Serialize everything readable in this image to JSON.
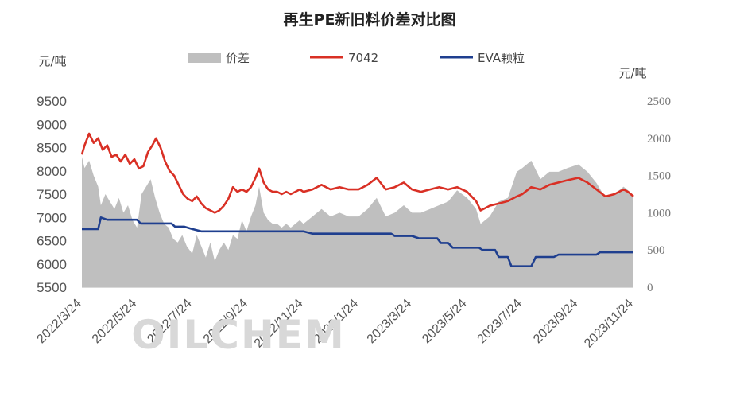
{
  "chart_data": {
    "type": "line",
    "title": "再生PE新旧料价差对比图",
    "left_unit": "元/吨",
    "right_unit": "元/吨",
    "watermark": "OILCHEM",
    "y_left": {
      "min": 5500,
      "max": 9500,
      "ticks": [
        "9500",
        "9000",
        "8500",
        "8000",
        "7500",
        "7000",
        "6500",
        "6000",
        "5500"
      ]
    },
    "y_right": {
      "min": 0,
      "max": 2500,
      "ticks": [
        "2500",
        "2000",
        "1500",
        "1000",
        "500",
        "0"
      ]
    },
    "x_ticks": [
      "2022/3/24",
      "2022/5/24",
      "2022/7/24",
      "2022/9/24",
      "2022/11/24",
      "2023/1/24",
      "2023/3/24",
      "2023/5/24",
      "2023/7/24",
      "2023/9/24",
      "2023/11/24"
    ],
    "x_range": [
      "2022/3/24",
      "2023/11/24"
    ],
    "legend": [
      {
        "name": "价差",
        "type": "area",
        "color": "#bfbfbf"
      },
      {
        "name": "7042",
        "type": "line",
        "color": "#d93025"
      },
      {
        "name": "EVA颗粒",
        "type": "line",
        "color": "#1f3f8f"
      }
    ],
    "series": [
      {
        "name": "7042",
        "axis": "left",
        "color": "#d93025",
        "points": [
          [
            "2022/3/24",
            8350
          ],
          [
            "2022/3/27",
            8550
          ],
          [
            "2022/4/1",
            8800
          ],
          [
            "2022/4/6",
            8600
          ],
          [
            "2022/4/11",
            8700
          ],
          [
            "2022/4/16",
            8450
          ],
          [
            "2022/4/21",
            8550
          ],
          [
            "2022/4/26",
            8300
          ],
          [
            "2022/5/1",
            8350
          ],
          [
            "2022/5/6",
            8200
          ],
          [
            "2022/5/11",
            8350
          ],
          [
            "2022/5/16",
            8150
          ],
          [
            "2022/5/21",
            8250
          ],
          [
            "2022/5/26",
            8050
          ],
          [
            "2022/5/31",
            8100
          ],
          [
            "2022/6/5",
            8400
          ],
          [
            "2022/6/10",
            8550
          ],
          [
            "2022/6/14",
            8700
          ],
          [
            "2022/6/19",
            8500
          ],
          [
            "2022/6/24",
            8200
          ],
          [
            "2022/6/29",
            8000
          ],
          [
            "2022/7/4",
            7900
          ],
          [
            "2022/7/9",
            7700
          ],
          [
            "2022/7/14",
            7500
          ],
          [
            "2022/7/19",
            7400
          ],
          [
            "2022/7/24",
            7350
          ],
          [
            "2022/7/29",
            7450
          ],
          [
            "2022/8/3",
            7300
          ],
          [
            "2022/8/8",
            7200
          ],
          [
            "2022/8/13",
            7150
          ],
          [
            "2022/8/18",
            7100
          ],
          [
            "2022/8/23",
            7150
          ],
          [
            "2022/8/28",
            7250
          ],
          [
            "2022/9/2",
            7400
          ],
          [
            "2022/9/7",
            7650
          ],
          [
            "2022/9/12",
            7550
          ],
          [
            "2022/9/17",
            7600
          ],
          [
            "2022/9/22",
            7550
          ],
          [
            "2022/9/27",
            7650
          ],
          [
            "2022/10/2",
            7850
          ],
          [
            "2022/10/6",
            8050
          ],
          [
            "2022/10/11",
            7750
          ],
          [
            "2022/10/16",
            7600
          ],
          [
            "2022/10/21",
            7550
          ],
          [
            "2022/10/26",
            7550
          ],
          [
            "2022/10/31",
            7500
          ],
          [
            "2022/11/5",
            7550
          ],
          [
            "2022/11/10",
            7500
          ],
          [
            "2022/11/15",
            7550
          ],
          [
            "2022/11/20",
            7600
          ],
          [
            "2022/11/24",
            7550
          ],
          [
            "2022/12/4",
            7600
          ],
          [
            "2022/12/14",
            7700
          ],
          [
            "2022/12/24",
            7600
          ],
          [
            "2023/1/3",
            7650
          ],
          [
            "2023/1/13",
            7600
          ],
          [
            "2023/1/24",
            7600
          ],
          [
            "2023/2/3",
            7700
          ],
          [
            "2023/2/13",
            7850
          ],
          [
            "2023/2/23",
            7600
          ],
          [
            "2023/3/5",
            7650
          ],
          [
            "2023/3/15",
            7750
          ],
          [
            "2023/3/24",
            7600
          ],
          [
            "2023/4/3",
            7550
          ],
          [
            "2023/4/13",
            7600
          ],
          [
            "2023/4/23",
            7650
          ],
          [
            "2023/5/3",
            7600
          ],
          [
            "2023/5/13",
            7650
          ],
          [
            "2023/5/24",
            7550
          ],
          [
            "2023/6/3",
            7350
          ],
          [
            "2023/6/8",
            7150
          ],
          [
            "2023/6/13",
            7200
          ],
          [
            "2023/6/18",
            7250
          ],
          [
            "2023/6/28",
            7300
          ],
          [
            "2023/7/8",
            7350
          ],
          [
            "2023/7/18",
            7450
          ],
          [
            "2023/7/24",
            7500
          ],
          [
            "2023/8/3",
            7650
          ],
          [
            "2023/8/13",
            7600
          ],
          [
            "2023/8/23",
            7700
          ],
          [
            "2023/9/2",
            7750
          ],
          [
            "2023/9/12",
            7800
          ],
          [
            "2023/9/24",
            7850
          ],
          [
            "2023/10/4",
            7750
          ],
          [
            "2023/10/14",
            7600
          ],
          [
            "2023/10/24",
            7450
          ],
          [
            "2023/11/3",
            7500
          ],
          [
            "2023/11/13",
            7600
          ],
          [
            "2023/11/18",
            7550
          ],
          [
            "2023/11/24",
            7450
          ]
        ]
      },
      {
        "name": "EVA颗粒",
        "axis": "left",
        "color": "#1f3f8f",
        "points": [
          [
            "2022/3/24",
            6750
          ],
          [
            "2022/4/11",
            6750
          ],
          [
            "2022/4/14",
            7000
          ],
          [
            "2022/4/21",
            6950
          ],
          [
            "2022/5/24",
            6950
          ],
          [
            "2022/5/28",
            6870
          ],
          [
            "2022/7/1",
            6870
          ],
          [
            "2022/7/5",
            6800
          ],
          [
            "2022/7/15",
            6800
          ],
          [
            "2022/7/24",
            6750
          ],
          [
            "2022/8/3",
            6700
          ],
          [
            "2022/9/24",
            6700
          ],
          [
            "2022/11/24",
            6700
          ],
          [
            "2022/12/4",
            6650
          ],
          [
            "2023/1/24",
            6650
          ],
          [
            "2023/3/1",
            6650
          ],
          [
            "2023/3/5",
            6600
          ],
          [
            "2023/3/24",
            6600
          ],
          [
            "2023/4/1",
            6550
          ],
          [
            "2023/4/21",
            6550
          ],
          [
            "2023/4/25",
            6450
          ],
          [
            "2023/5/3",
            6450
          ],
          [
            "2023/5/8",
            6350
          ],
          [
            "2023/6/6",
            6350
          ],
          [
            "2023/6/10",
            6300
          ],
          [
            "2023/6/24",
            6300
          ],
          [
            "2023/6/28",
            6150
          ],
          [
            "2023/7/8",
            6150
          ],
          [
            "2023/7/12",
            5950
          ],
          [
            "2023/8/3",
            5950
          ],
          [
            "2023/8/8",
            6150
          ],
          [
            "2023/8/28",
            6150
          ],
          [
            "2023/9/2",
            6200
          ],
          [
            "2023/10/14",
            6200
          ],
          [
            "2023/10/18",
            6250
          ],
          [
            "2023/11/24",
            6250
          ]
        ]
      },
      {
        "name": "价差",
        "axis": "right",
        "color": "#bfbfbf",
        "points": [
          [
            "2022/3/24",
            1750
          ],
          [
            "2022/3/27",
            1600
          ],
          [
            "2022/4/1",
            1700
          ],
          [
            "2022/4/6",
            1500
          ],
          [
            "2022/4/11",
            1350
          ],
          [
            "2022/4/14",
            1100
          ],
          [
            "2022/4/19",
            1250
          ],
          [
            "2022/4/24",
            1150
          ],
          [
            "2022/4/29",
            1050
          ],
          [
            "2022/5/4",
            1200
          ],
          [
            "2022/5/9",
            1000
          ],
          [
            "2022/5/14",
            1100
          ],
          [
            "2022/5/19",
            900
          ],
          [
            "2022/5/24",
            800
          ],
          [
            "2022/5/29",
            1250
          ],
          [
            "2022/6/3",
            1350
          ],
          [
            "2022/6/8",
            1450
          ],
          [
            "2022/6/13",
            1200
          ],
          [
            "2022/6/18",
            1000
          ],
          [
            "2022/6/23",
            850
          ],
          [
            "2022/6/28",
            800
          ],
          [
            "2022/7/3",
            650
          ],
          [
            "2022/7/8",
            600
          ],
          [
            "2022/7/13",
            700
          ],
          [
            "2022/7/18",
            550
          ],
          [
            "2022/7/24",
            450
          ],
          [
            "2022/7/29",
            700
          ],
          [
            "2022/8/3",
            550
          ],
          [
            "2022/8/8",
            400
          ],
          [
            "2022/8/13",
            600
          ],
          [
            "2022/8/18",
            350
          ],
          [
            "2022/8/23",
            500
          ],
          [
            "2022/8/28",
            600
          ],
          [
            "2022/9/2",
            500
          ],
          [
            "2022/9/7",
            700
          ],
          [
            "2022/9/12",
            650
          ],
          [
            "2022/9/17",
            900
          ],
          [
            "2022/9/22",
            750
          ],
          [
            "2022/9/27",
            950
          ],
          [
            "2022/10/2",
            1100
          ],
          [
            "2022/10/6",
            1350
          ],
          [
            "2022/10/11",
            1000
          ],
          [
            "2022/10/16",
            900
          ],
          [
            "2022/10/21",
            850
          ],
          [
            "2022/10/26",
            850
          ],
          [
            "2022/10/31",
            800
          ],
          [
            "2022/11/5",
            850
          ],
          [
            "2022/11/10",
            800
          ],
          [
            "2022/11/15",
            850
          ],
          [
            "2022/11/20",
            900
          ],
          [
            "2022/11/24",
            850
          ],
          [
            "2022/12/4",
            950
          ],
          [
            "2022/12/14",
            1050
          ],
          [
            "2022/12/24",
            950
          ],
          [
            "2023/1/3",
            1000
          ],
          [
            "2023/1/13",
            950
          ],
          [
            "2023/1/24",
            950
          ],
          [
            "2023/2/3",
            1050
          ],
          [
            "2023/2/13",
            1200
          ],
          [
            "2023/2/23",
            950
          ],
          [
            "2023/3/5",
            1000
          ],
          [
            "2023/3/15",
            1100
          ],
          [
            "2023/3/24",
            1000
          ],
          [
            "2023/4/3",
            1000
          ],
          [
            "2023/4/13",
            1050
          ],
          [
            "2023/4/23",
            1100
          ],
          [
            "2023/5/3",
            1150
          ],
          [
            "2023/5/13",
            1300
          ],
          [
            "2023/5/24",
            1200
          ],
          [
            "2023/6/3",
            1050
          ],
          [
            "2023/6/8",
            850
          ],
          [
            "2023/6/13",
            900
          ],
          [
            "2023/6/18",
            950
          ],
          [
            "2023/6/28",
            1150
          ],
          [
            "2023/7/8",
            1200
          ],
          [
            "2023/7/18",
            1550
          ],
          [
            "2023/7/24",
            1600
          ],
          [
            "2023/8/3",
            1700
          ],
          [
            "2023/8/13",
            1450
          ],
          [
            "2023/8/23",
            1550
          ],
          [
            "2023/9/2",
            1550
          ],
          [
            "2023/9/12",
            1600
          ],
          [
            "2023/9/24",
            1650
          ],
          [
            "2023/10/4",
            1550
          ],
          [
            "2023/10/14",
            1400
          ],
          [
            "2023/10/24",
            1200
          ],
          [
            "2023/11/3",
            1250
          ],
          [
            "2023/11/13",
            1350
          ],
          [
            "2023/11/18",
            1300
          ],
          [
            "2023/11/24",
            1200
          ]
        ]
      }
    ],
    "grid": false,
    "legend_position": "top"
  }
}
